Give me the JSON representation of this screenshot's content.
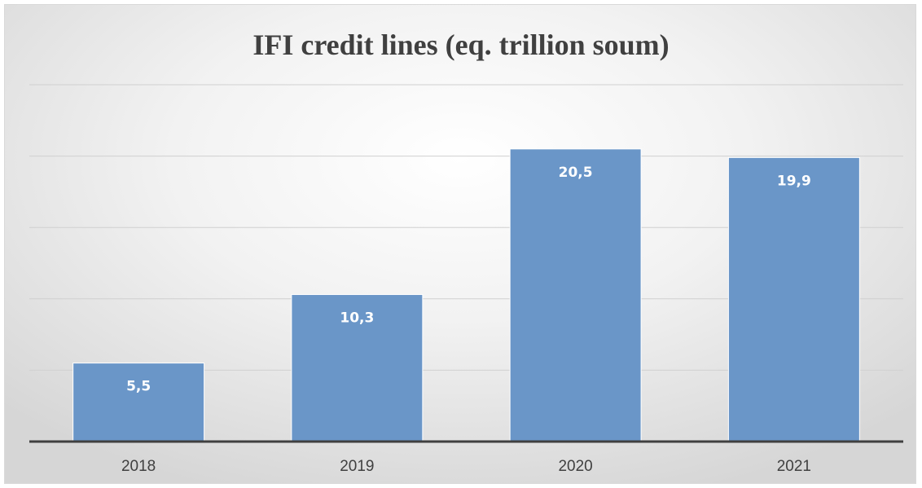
{
  "chart_data": {
    "type": "bar",
    "title": "IFI credit lines (eq. trillion soum)",
    "categories": [
      "2018",
      "2019",
      "2020",
      "2021"
    ],
    "values": [
      5.5,
      10.3,
      20.5,
      19.9
    ],
    "value_labels": [
      "5,5",
      "10,3",
      "20,5",
      "19,9"
    ],
    "xlabel": "",
    "ylabel": "",
    "ylim": [
      0,
      25
    ],
    "gridlines": [
      0,
      5,
      10,
      15,
      20,
      25
    ],
    "grid": true,
    "legend": "none",
    "colors": {
      "bar": "#6a96c8",
      "bar_edge": "#ffffff",
      "grid": "#d0d0d0",
      "axis": "#404040",
      "label": "#ffffff",
      "tick": "#404040"
    }
  }
}
